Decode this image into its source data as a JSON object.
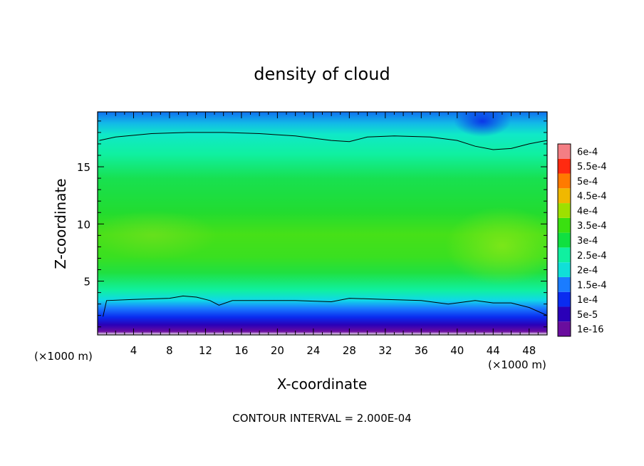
{
  "chart_data": {
    "type": "heatmap",
    "title": "density of cloud",
    "xlabel": "X-coordinate",
    "ylabel": "Z-coordinate",
    "x_unit_left": "(×1000 m)",
    "x_unit_right": "(×1000 m)",
    "footer": "CONTOUR INTERVAL = 2.000E-04",
    "xlim": [
      0,
      50
    ],
    "ylim": [
      0.3,
      19.8
    ],
    "x_ticks": [
      4,
      8,
      12,
      16,
      20,
      24,
      28,
      32,
      36,
      40,
      44,
      48
    ],
    "y_ticks": [
      5,
      10,
      15
    ],
    "colorbar": {
      "levels": [
        "1e-16",
        "5e-5",
        "1e-4",
        "1.5e-4",
        "2e-4",
        "2.5e-4",
        "3e-4",
        "3.5e-4",
        "4e-4",
        "4.5e-4",
        "5e-4",
        "5.5e-4",
        "6e-4"
      ],
      "colors": [
        "#6a0d9e",
        "#2a00b8",
        "#0a2cf0",
        "#1a7cff",
        "#10e0d8",
        "#10f0a0",
        "#10e040",
        "#3ae010",
        "#9ee000",
        "#f0b800",
        "#ff7a00",
        "#ff2a10",
        "#f47e84"
      ]
    },
    "contour_1e4_lower": [
      [
        0.6,
        1.9
      ],
      [
        1.0,
        3.3
      ],
      [
        4,
        3.4
      ],
      [
        8,
        3.5
      ],
      [
        9.5,
        3.7
      ],
      [
        11,
        3.6
      ],
      [
        12.5,
        3.3
      ],
      [
        13.5,
        2.9
      ],
      [
        15,
        3.3
      ],
      [
        18,
        3.3
      ],
      [
        22,
        3.3
      ],
      [
        26,
        3.2
      ],
      [
        28,
        3.5
      ],
      [
        32,
        3.4
      ],
      [
        36,
        3.3
      ],
      [
        39,
        3.0
      ],
      [
        42,
        3.3
      ],
      [
        44,
        3.1
      ],
      [
        46,
        3.1
      ],
      [
        48,
        2.7
      ],
      [
        50,
        2.0
      ]
    ],
    "contour_1e4_upper": [
      [
        0.2,
        17.3
      ],
      [
        2,
        17.6
      ],
      [
        6,
        17.9
      ],
      [
        10,
        18.0
      ],
      [
        14,
        18.0
      ],
      [
        18,
        17.9
      ],
      [
        22,
        17.7
      ],
      [
        26,
        17.3
      ],
      [
        28,
        17.2
      ],
      [
        30,
        17.6
      ],
      [
        33,
        17.7
      ],
      [
        37,
        17.6
      ],
      [
        40,
        17.3
      ],
      [
        42,
        16.8
      ],
      [
        44,
        16.5
      ],
      [
        46,
        16.6
      ],
      [
        48,
        17.0
      ],
      [
        50,
        17.3
      ]
    ]
  }
}
